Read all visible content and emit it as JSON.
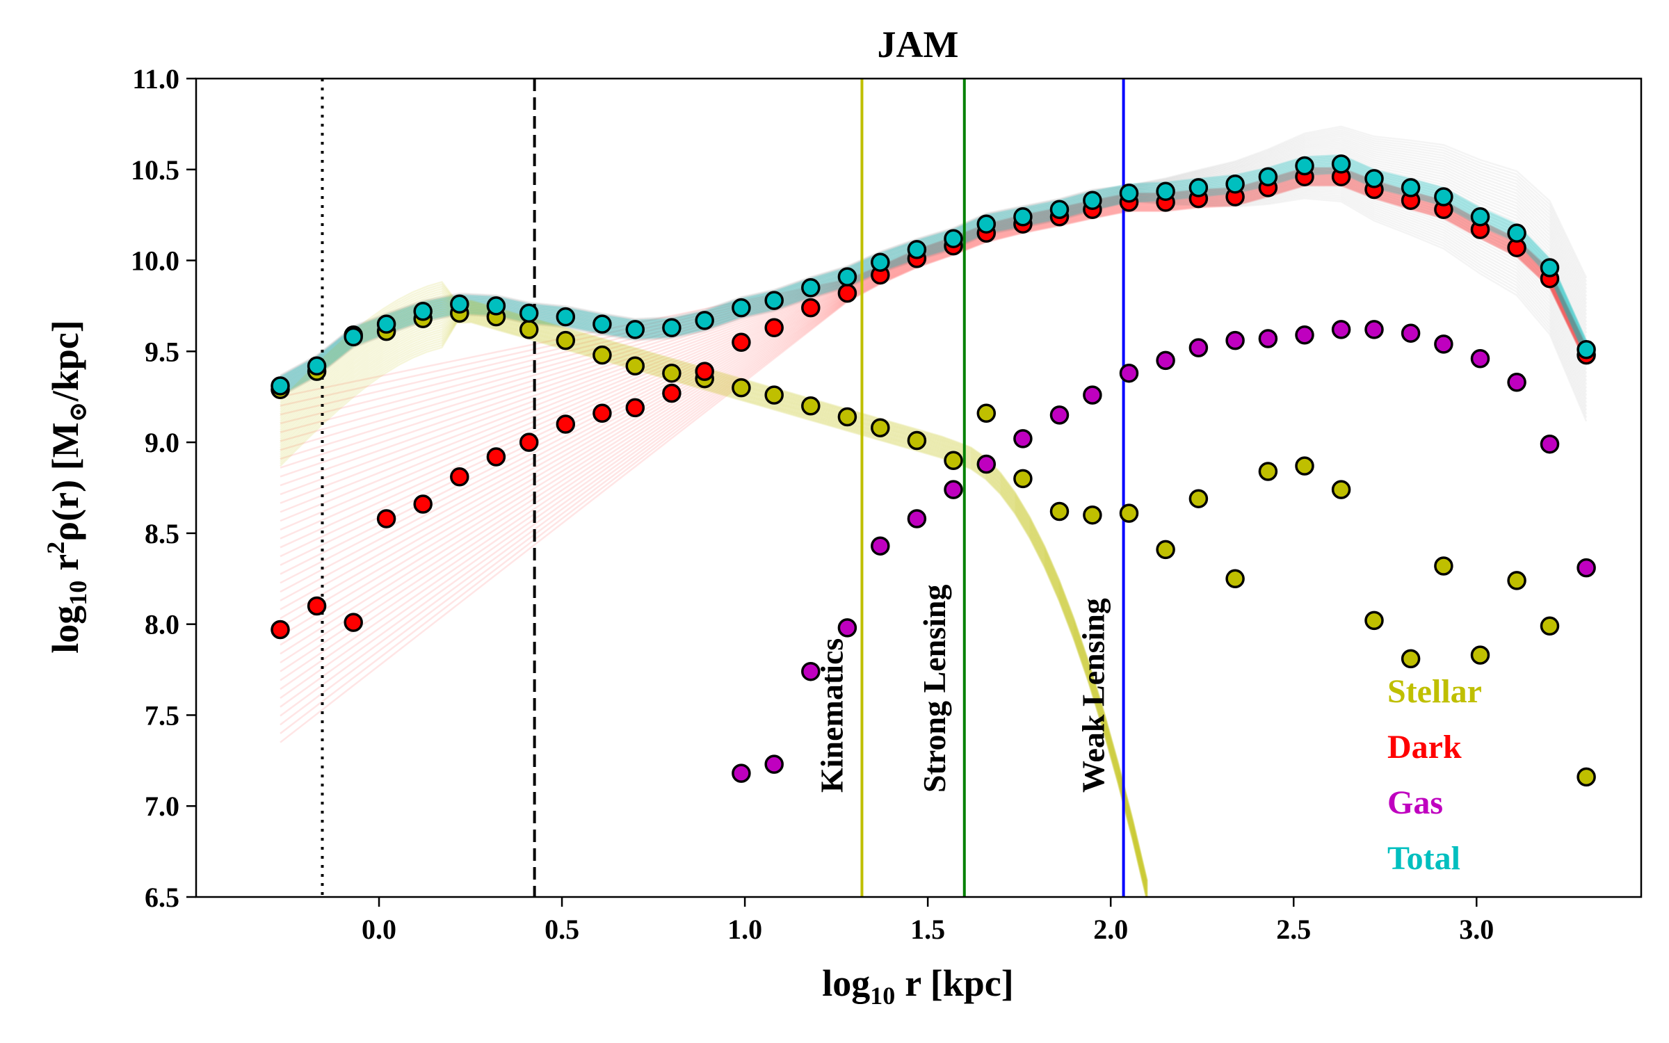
{
  "chart_data": {
    "type": "scatter",
    "title": "JAM",
    "xlabel_main": "log",
    "xlabel_sub": "10",
    "xlabel_rest": "r  [kpc]",
    "ylabel_main": "log",
    "ylabel_sub": "10",
    "ylabel_r": "r",
    "ylabel_sup": "2",
    "ylabel_rho": "ρ(r)  [M",
    "ylabel_sun": "⊙",
    "ylabel_end": "/kpc]",
    "xlim": [
      -0.5,
      3.45
    ],
    "ylim": [
      6.5,
      11.0
    ],
    "xticks": [
      0.0,
      0.5,
      1.0,
      1.5,
      2.0,
      2.5,
      3.0
    ],
    "xtick_labels": [
      "0.0",
      "0.5",
      "1.0",
      "1.5",
      "2.0",
      "2.5",
      "3.0"
    ],
    "yticks": [
      6.5,
      7.0,
      7.5,
      8.0,
      8.5,
      9.0,
      9.5,
      10.0,
      10.5,
      11.0
    ],
    "ytick_labels": [
      "6.5",
      "7.0",
      "7.5",
      "8.0",
      "8.5",
      "9.0",
      "9.5",
      "10.0",
      "10.5",
      "11.0"
    ],
    "vlines": [
      {
        "name": "dotted-line",
        "x": -0.155,
        "color": "#000000",
        "style": "dotted",
        "label": ""
      },
      {
        "name": "dashed-line",
        "x": 0.425,
        "color": "#000000",
        "style": "dashed",
        "label": ""
      },
      {
        "name": "kinematics-line",
        "x": 1.32,
        "color": "#bfbf00",
        "style": "solid",
        "label": "Kinematics"
      },
      {
        "name": "strong-lensing-line",
        "x": 1.6,
        "color": "#008000",
        "style": "solid",
        "label": "Strong Lensing"
      },
      {
        "name": "weak-lensing-line",
        "x": 2.035,
        "color": "#0000ff",
        "style": "solid",
        "label": "Weak Lensing"
      }
    ],
    "series": [
      {
        "name": "Dark",
        "color": "#ff0000",
        "x": [
          -0.27,
          -0.17,
          -0.07,
          0.02,
          0.12,
          0.22,
          0.32,
          0.41,
          0.51,
          0.61,
          0.7,
          0.8,
          0.89,
          0.99,
          1.08,
          1.18,
          1.28,
          1.37,
          1.47,
          1.57,
          1.66,
          1.76,
          1.86,
          1.95,
          2.05,
          2.15,
          2.24,
          2.34,
          2.43,
          2.53,
          2.63,
          2.72,
          2.82,
          2.91,
          3.01,
          3.11,
          3.2,
          3.3
        ],
        "y": [
          7.97,
          8.1,
          8.01,
          8.58,
          8.66,
          8.81,
          8.92,
          9.0,
          9.1,
          9.16,
          9.19,
          9.27,
          9.39,
          9.55,
          9.63,
          9.74,
          9.82,
          9.92,
          10.01,
          10.08,
          10.15,
          10.2,
          10.24,
          10.28,
          10.32,
          10.32,
          10.34,
          10.35,
          10.4,
          10.46,
          10.46,
          10.39,
          10.33,
          10.28,
          10.17,
          10.07,
          9.9,
          9.48
        ]
      },
      {
        "name": "Stellar",
        "color": "#bfbf00",
        "x": [
          -0.27,
          -0.17,
          -0.07,
          0.02,
          0.12,
          0.22,
          0.32,
          0.41,
          0.51,
          0.61,
          0.7,
          0.8,
          0.89,
          0.99,
          1.08,
          1.18,
          1.28,
          1.37,
          1.47,
          1.57,
          1.66,
          1.76,
          1.86,
          1.95,
          2.05,
          2.15,
          2.24,
          2.34,
          2.43,
          2.53,
          2.63,
          2.72,
          2.82,
          2.91,
          3.01,
          3.11,
          3.2,
          3.3
        ],
        "y": [
          9.29,
          9.39,
          9.59,
          9.61,
          9.68,
          9.71,
          9.69,
          9.62,
          9.56,
          9.48,
          9.42,
          9.38,
          9.35,
          9.3,
          9.26,
          9.2,
          9.14,
          9.08,
          9.01,
          8.9,
          9.16,
          8.8,
          8.62,
          8.6,
          8.61,
          8.41,
          8.69,
          8.25,
          8.84,
          8.87,
          8.74,
          8.02,
          7.81,
          8.32,
          7.83,
          8.24,
          7.99,
          7.16
        ]
      },
      {
        "name": "Gas",
        "color": "#bf00bf",
        "x": [
          0.99,
          1.08,
          1.18,
          1.28,
          1.37,
          1.47,
          1.57,
          1.66,
          1.76,
          1.86,
          1.95,
          2.05,
          2.15,
          2.24,
          2.34,
          2.43,
          2.53,
          2.63,
          2.72,
          2.82,
          2.91,
          3.01,
          3.11,
          3.2,
          3.3
        ],
        "y": [
          7.18,
          7.23,
          7.74,
          7.98,
          8.43,
          8.58,
          8.74,
          8.88,
          9.02,
          9.15,
          9.26,
          9.38,
          9.45,
          9.52,
          9.56,
          9.57,
          9.59,
          9.62,
          9.62,
          9.6,
          9.54,
          9.46,
          9.33,
          8.99,
          8.31
        ]
      },
      {
        "name": "Total",
        "color": "#00bfbf",
        "x": [
          -0.27,
          -0.17,
          -0.07,
          0.02,
          0.12,
          0.22,
          0.32,
          0.41,
          0.51,
          0.61,
          0.7,
          0.8,
          0.89,
          0.99,
          1.08,
          1.18,
          1.28,
          1.37,
          1.47,
          1.57,
          1.66,
          1.76,
          1.86,
          1.95,
          2.05,
          2.15,
          2.24,
          2.34,
          2.43,
          2.53,
          2.63,
          2.72,
          2.82,
          2.91,
          3.01,
          3.11,
          3.2,
          3.3
        ],
        "y": [
          9.31,
          9.42,
          9.58,
          9.65,
          9.72,
          9.76,
          9.75,
          9.71,
          9.69,
          9.65,
          9.62,
          9.63,
          9.67,
          9.74,
          9.78,
          9.85,
          9.91,
          9.99,
          10.06,
          10.12,
          10.2,
          10.24,
          10.28,
          10.33,
          10.37,
          10.38,
          10.4,
          10.42,
          10.46,
          10.52,
          10.53,
          10.45,
          10.4,
          10.35,
          10.24,
          10.15,
          9.96,
          9.51
        ]
      }
    ],
    "legend": {
      "placement": "bottom-right",
      "entries": [
        "Stellar",
        "Dark",
        "Gas",
        "Total"
      ]
    }
  },
  "colors": {
    "stellar": "#bfbf00",
    "dark": "#ff0000",
    "gas": "#bf00bf",
    "total": "#00bfbf"
  }
}
